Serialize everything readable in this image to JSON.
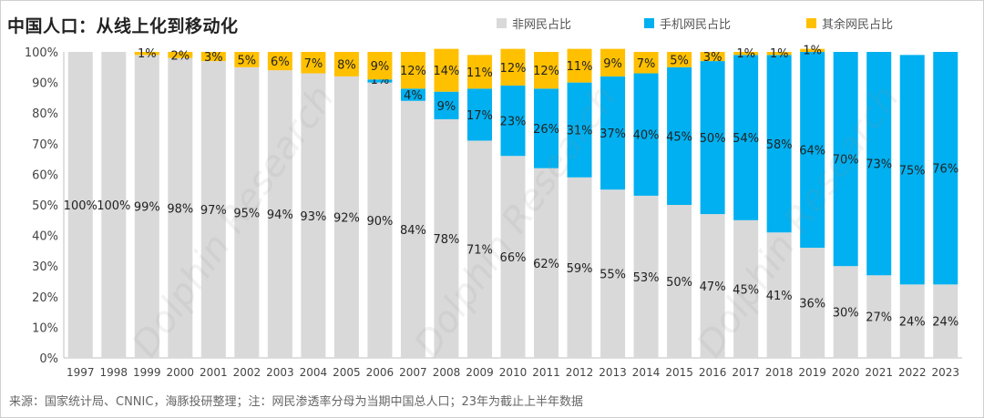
{
  "title": "中国人口：从线上化到移动化",
  "legend": {
    "items": [
      {
        "label": "非网民占比",
        "color": "#D9D9D9"
      },
      {
        "label": "手机网民占比",
        "color": "#00B0F0"
      },
      {
        "label": "其余网民占比",
        "color": "#FFC000"
      }
    ]
  },
  "source_note": "来源：国家统计局、CNNIC，海豚投研整理；注：网民渗透率分母为当期中国总人口；23年为截止上半年数据",
  "chart_data": {
    "type": "bar",
    "stacked": true,
    "title": "中国人口：从线上化到移动化",
    "categories": [
      "1997",
      "1998",
      "1999",
      "2000",
      "2001",
      "2002",
      "2003",
      "2004",
      "2005",
      "2006",
      "2007",
      "2008",
      "2009",
      "2010",
      "2011",
      "2012",
      "2013",
      "2014",
      "2015",
      "2016",
      "2017",
      "2018",
      "2019",
      "2020",
      "2021",
      "2022",
      "2023"
    ],
    "series": [
      {
        "name": "非网民占比",
        "color": "#D9D9D9",
        "values": [
          100,
          100,
          99,
          98,
          97,
          95,
          94,
          93,
          92,
          90,
          84,
          78,
          71,
          66,
          62,
          59,
          55,
          53,
          50,
          47,
          45,
          41,
          36,
          30,
          27,
          24,
          24
        ],
        "labels": [
          "100%",
          "100%",
          "99%",
          "98%",
          "97%",
          "95%",
          "94%",
          "93%",
          "92%",
          "90%",
          "84%",
          "78%",
          "71%",
          "66%",
          "62%",
          "59%",
          "55%",
          "53%",
          "50%",
          "47%",
          "45%",
          "41%",
          "36%",
          "30%",
          "27%",
          "24%",
          "24%"
        ]
      },
      {
        "name": "手机网民占比",
        "color": "#00B0F0",
        "values": [
          0,
          0,
          0,
          0,
          0,
          0,
          0,
          0,
          0,
          1,
          4,
          9,
          17,
          23,
          26,
          31,
          37,
          40,
          45,
          50,
          54,
          58,
          64,
          70,
          73,
          75,
          76
        ],
        "labels": [
          "",
          "",
          "",
          "",
          "",
          "",
          "",
          "",
          "",
          "1%",
          "4%",
          "9%",
          "17%",
          "23%",
          "26%",
          "31%",
          "37%",
          "40%",
          "45%",
          "50%",
          "54%",
          "58%",
          "64%",
          "70%",
          "73%",
          "75%",
          "76%"
        ]
      },
      {
        "name": "其余网民占比",
        "color": "#FFC000",
        "values": [
          0,
          0,
          1,
          2,
          3,
          5,
          6,
          7,
          8,
          9,
          12,
          14,
          11,
          12,
          12,
          11,
          9,
          7,
          5,
          3,
          1,
          1,
          1,
          0,
          0,
          0,
          0
        ],
        "labels": [
          "",
          "",
          "1%",
          "2%",
          "3%",
          "5%",
          "6%",
          "7%",
          "8%",
          "9%",
          "12%",
          "14%",
          "11%",
          "12%",
          "12%",
          "11%",
          "9%",
          "7%",
          "5%",
          "3%",
          "1%",
          "1%",
          "1%",
          "",
          "",
          "",
          ""
        ]
      }
    ],
    "y_ticks": [
      "0%",
      "10%",
      "20%",
      "30%",
      "40%",
      "50%",
      "60%",
      "70%",
      "80%",
      "90%",
      "100%"
    ],
    "ylim": [
      0,
      100
    ],
    "legend_position": "top-right",
    "grid": false
  }
}
